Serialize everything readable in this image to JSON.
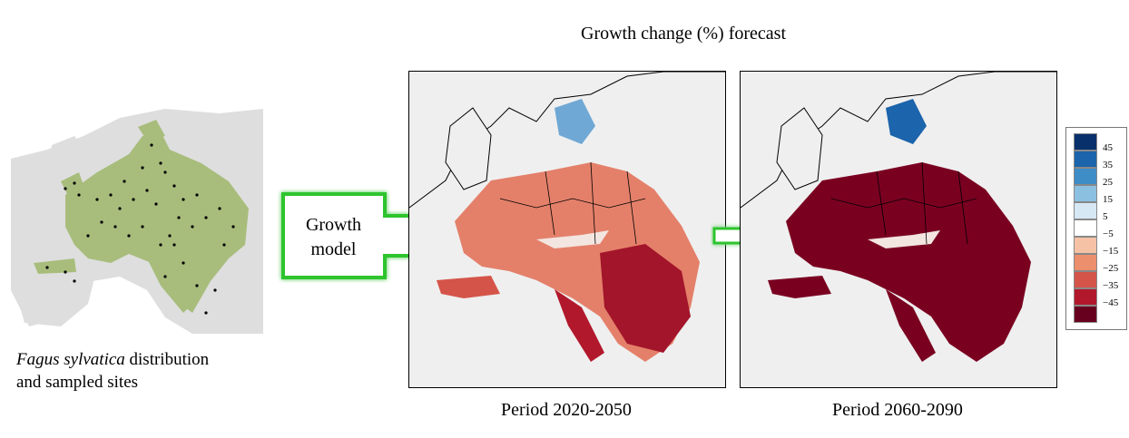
{
  "header": {
    "title": "Growth change (%) forecast"
  },
  "left_panel": {
    "caption_italic": "Fagus sylvatica",
    "caption_rest_line1": " distribution",
    "caption_line2": "and sampled sites",
    "colors": {
      "land": "#dedede",
      "distribution": "#a8bd7c",
      "sites": "#000000"
    }
  },
  "model_box": {
    "line1": "Growth",
    "line2": "model",
    "border_color": "#2ec42e"
  },
  "panels": [
    {
      "label": "Period 2020-2050"
    },
    {
      "label": "Period 2060-2090"
    }
  ],
  "legend": {
    "items": [
      {
        "label": "45",
        "color": "#08306b"
      },
      {
        "label": "35",
        "color": "#1c64ab"
      },
      {
        "label": "25",
        "color": "#3f8dc6"
      },
      {
        "label": "15",
        "color": "#8cc0e0"
      },
      {
        "label": "5",
        "color": "#d7e8f5"
      },
      {
        "label": "−5",
        "color": "#ffffff"
      },
      {
        "label": "−15",
        "color": "#f6c2a5"
      },
      {
        "label": "−25",
        "color": "#ec8f6d"
      },
      {
        "label": "−35",
        "color": "#d5544a"
      },
      {
        "label": "−45",
        "color": "#b2182b"
      },
      {
        "label": "",
        "color": "#67001f"
      }
    ]
  }
}
